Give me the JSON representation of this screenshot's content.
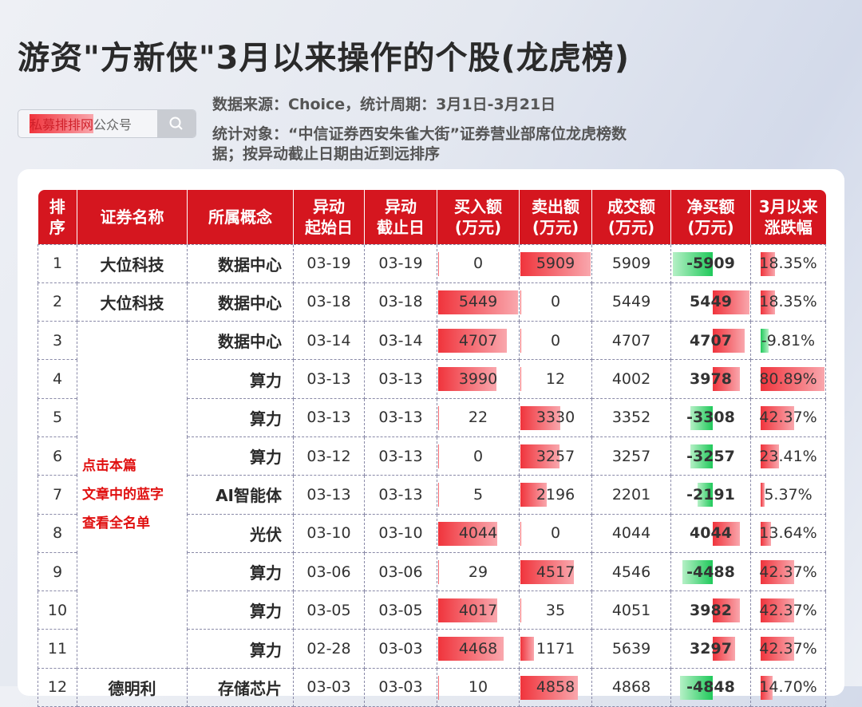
{
  "title": "游资\"方新侠\"3月以来操作的个股(龙虎榜)",
  "search": {
    "brand": "私募排排网",
    "suffix": "公众号",
    "icon": "search-icon"
  },
  "meta": {
    "line1": "数据来源：Choice，统计周期：3月1日-3月21日",
    "line2": "统计对象：“中信证券西安朱雀大街”证券营业部席位龙虎榜数",
    "line3": "据；按异动截止日期由近到远排序"
  },
  "note": [
    "点击本篇",
    "文章中的蓝字",
    "查看全名单"
  ],
  "colors": {
    "header": "#d5161f",
    "positive": "#f0343c",
    "negative": "#1fc95a",
    "note": "#e01010"
  },
  "headers": [
    [
      "排",
      "序"
    ],
    [
      "证券名称"
    ],
    [
      "所属概念"
    ],
    [
      "异动",
      "起始日"
    ],
    [
      "异动",
      "截止日"
    ],
    [
      "买入额",
      "(万元)"
    ],
    [
      "卖出额",
      "(万元)"
    ],
    [
      "成交额",
      "(万元)"
    ],
    [
      "净买额",
      "(万元)"
    ],
    [
      "3月以来",
      "涨跌幅"
    ]
  ],
  "rows": [
    {
      "rank": "1",
      "name": "大位科技",
      "concept": "数据中心",
      "start": "03-19",
      "end": "03-19",
      "buy": 0,
      "sell": 5909,
      "total": "5909",
      "net": -5909,
      "pct": 18.35
    },
    {
      "rank": "2",
      "name": "大位科技",
      "concept": "数据中心",
      "start": "03-18",
      "end": "03-18",
      "buy": 5449,
      "sell": 0,
      "total": "5449",
      "net": 5449,
      "pct": 18.35
    },
    {
      "rank": "3",
      "name": "",
      "concept": "数据中心",
      "start": "03-14",
      "end": "03-14",
      "buy": 4707,
      "sell": 0,
      "total": "4707",
      "net": 4707,
      "pct": -9.81
    },
    {
      "rank": "4",
      "name": "",
      "concept": "算力",
      "start": "03-13",
      "end": "03-13",
      "buy": 3990,
      "sell": 12,
      "total": "4002",
      "net": 3978,
      "pct": 80.89
    },
    {
      "rank": "5",
      "name": "",
      "concept": "算力",
      "start": "03-13",
      "end": "03-13",
      "buy": 22,
      "sell": 3330,
      "total": "3352",
      "net": -3308,
      "pct": 42.37
    },
    {
      "rank": "6",
      "name": "",
      "concept": "算力",
      "start": "03-12",
      "end": "03-13",
      "buy": 0,
      "sell": 3257,
      "total": "3257",
      "net": -3257,
      "pct": 23.41
    },
    {
      "rank": "7",
      "name": "",
      "concept": "AI智能体",
      "start": "03-13",
      "end": "03-13",
      "buy": 5,
      "sell": 2196,
      "total": "2201",
      "net": -2191,
      "pct": 5.37
    },
    {
      "rank": "8",
      "name": "",
      "concept": "光伏",
      "start": "03-10",
      "end": "03-10",
      "buy": 4044,
      "sell": 0,
      "total": "4044",
      "net": 4044,
      "pct": 13.64
    },
    {
      "rank": "9",
      "name": "",
      "concept": "算力",
      "start": "03-06",
      "end": "03-06",
      "buy": 29,
      "sell": 4517,
      "total": "4546",
      "net": -4488,
      "pct": 42.37
    },
    {
      "rank": "10",
      "name": "",
      "concept": "算力",
      "start": "03-05",
      "end": "03-05",
      "buy": 4017,
      "sell": 35,
      "total": "4051",
      "net": 3982,
      "pct": 42.37
    },
    {
      "rank": "11",
      "name": "",
      "concept": "算力",
      "start": "02-28",
      "end": "03-03",
      "buy": 4468,
      "sell": 1171,
      "total": "5639",
      "net": 3297,
      "pct": 42.37
    },
    {
      "rank": "12",
      "name": "德明利",
      "concept": "存储芯片",
      "start": "03-03",
      "end": "03-03",
      "buy": 10,
      "sell": 4858,
      "total": "4868",
      "net": -4848,
      "pct": 14.7
    }
  ]
}
